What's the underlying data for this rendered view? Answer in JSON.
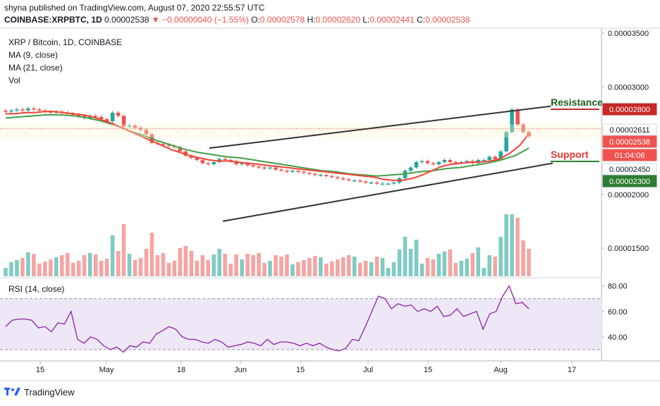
{
  "header": {
    "published": "shyna published on TradingView.com, August 07, 2020 22:55:57 UTC",
    "symbol": "COINBASE:XRPBTC, 1D",
    "price": "0.00002538",
    "change": "−0.00000040 (−1.55%)",
    "o_label": "O:",
    "o_value": "0.00002578",
    "h_label": "H:",
    "h_value": "0.00002620",
    "l_label": "L:",
    "l_value": "0.00002441",
    "c_label": "C:",
    "c_value": "0.00002538"
  },
  "legend": {
    "title": "XRP / Bitcoin, 1D, COINBASE",
    "ma9": "MA (9, close)",
    "ma21": "MA (21, close)",
    "vol": "Vol"
  },
  "rsi_legend": "RSI (14, close)",
  "branding": "TradingView",
  "annotations": {
    "resistance": "Resistance",
    "support": "Support"
  },
  "colors": {
    "up": "#26a69a",
    "down": "#ef5350",
    "ma9": "#f44336",
    "ma21": "#43a047",
    "rsi": "#8e24aa",
    "resistance": "#1b5e20",
    "support": "#e53935",
    "trend": "#333333"
  },
  "price_tags": [
    {
      "value": "0.00002800",
      "bg": "#c62828",
      "fg": "#ffffff"
    },
    {
      "value": "0.00002611",
      "bg": "#ffffff",
      "fg": "#131722"
    },
    {
      "value": "0.00002538",
      "bg": "#ef5350",
      "fg": "#ffffff"
    },
    {
      "value": "01:04:06",
      "bg": "#ef5350",
      "fg": "#ffffff"
    },
    {
      "value": "0.00002450",
      "bg": "#ffffff",
      "fg": "#131722"
    },
    {
      "value": "0.00002300",
      "bg": "#2e7d32",
      "fg": "#ffffff"
    }
  ],
  "chart_data": {
    "type": "candlestick",
    "y_axis_ticks": [
      "0.00003500",
      "0.00003000",
      "0.00002000",
      "0.00001500"
    ],
    "x_axis_ticks": [
      "15",
      "May",
      "18",
      "Jun",
      "15",
      "Jul",
      "15",
      "Aug",
      "17"
    ],
    "rsi_ticks": [
      "80.00",
      "60.00",
      "40.00"
    ],
    "rsi_band": [
      30,
      70
    ],
    "candles_close": [
      2.77e-05,
      2.78e-05,
      2.79e-05,
      2.78e-05,
      2.8e-05,
      2.79e-05,
      2.78e-05,
      2.77e-05,
      2.76e-05,
      2.77e-05,
      2.76e-05,
      2.75e-05,
      2.74e-05,
      2.73e-05,
      2.71e-05,
      2.73e-05,
      2.72e-05,
      2.7e-05,
      2.68e-05,
      2.76e-05,
      2.73e-05,
      2.63e-05,
      2.64e-05,
      2.62e-05,
      2.6e-05,
      2.56e-05,
      2.48e-05,
      2.47e-05,
      2.46e-05,
      2.45e-05,
      2.44e-05,
      2.4e-05,
      2.36e-05,
      2.34e-05,
      2.32e-05,
      2.29e-05,
      2.28e-05,
      2.3e-05,
      2.33e-05,
      2.32e-05,
      2.31e-05,
      2.28e-05,
      2.29e-05,
      2.27e-05,
      2.26e-05,
      2.25e-05,
      2.24e-05,
      2.25e-05,
      2.23e-05,
      2.22e-05,
      2.21e-05,
      2.22e-05,
      2.21e-05,
      2.2e-05,
      2.19e-05,
      2.18e-05,
      2.18e-05,
      2.17e-05,
      2.16e-05,
      2.15e-05,
      2.14e-05,
      2.13e-05,
      2.13e-05,
      2.12e-05,
      2.11e-05,
      2.11e-05,
      2.1e-05,
      2.1e-05,
      2.1e-05,
      2.11e-05,
      2.15e-05,
      2.22e-05,
      2.25e-05,
      2.3e-05,
      2.31e-05,
      2.29e-05,
      2.28e-05,
      2.3e-05,
      2.32e-05,
      2.3e-05,
      2.29e-05,
      2.3e-05,
      2.31e-05,
      2.29e-05,
      2.32e-05,
      2.32e-05,
      2.35e-05,
      2.33e-05,
      2.4e-05,
      2.58e-05,
      2.79e-05,
      2.65e-05,
      2.58e-05,
      2.54e-05
    ],
    "ma9": [
      2.75e-05,
      2.75e-05,
      2.76e-05,
      2.76e-05,
      2.77e-05,
      2.77e-05,
      2.76e-05,
      2.75e-05,
      2.74e-05,
      2.72e-05,
      2.69e-05,
      2.66e-05,
      2.62e-05,
      2.58e-05,
      2.54e-05,
      2.5e-05,
      2.46e-05,
      2.42e-05,
      2.39e-05,
      2.36e-05,
      2.34e-05,
      2.32e-05,
      2.31e-05,
      2.31e-05,
      2.3e-05,
      2.29e-05,
      2.28e-05,
      2.27e-05,
      2.26e-05,
      2.25e-05,
      2.24e-05,
      2.23e-05,
      2.22e-05,
      2.21e-05,
      2.2e-05,
      2.19e-05,
      2.18e-05,
      2.17e-05,
      2.16e-05,
      2.14e-05,
      2.13e-05,
      2.13e-05,
      2.15e-05,
      2.18e-05,
      2.22e-05,
      2.26e-05,
      2.28e-05,
      2.29e-05,
      2.3e-05,
      2.3e-05,
      2.31e-05,
      2.33e-05,
      2.38e-05,
      2.45e-05,
      2.56e-05
    ],
    "ma21": [
      2.71e-05,
      2.72e-05,
      2.73e-05,
      2.74e-05,
      2.74e-05,
      2.73e-05,
      2.71e-05,
      2.68e-05,
      2.64e-05,
      2.59e-05,
      2.55e-05,
      2.5e-05,
      2.46e-05,
      2.42e-05,
      2.39e-05,
      2.37e-05,
      2.35e-05,
      2.34e-05,
      2.32e-05,
      2.3e-05,
      2.28e-05,
      2.26e-05,
      2.24e-05,
      2.22e-05,
      2.21e-05,
      2.19e-05,
      2.18e-05,
      2.17e-05,
      2.18e-05,
      2.19e-05,
      2.21e-05,
      2.22e-05,
      2.24e-05,
      2.25e-05,
      2.27e-05,
      2.29e-05,
      2.32e-05,
      2.36e-05,
      2.43e-05
    ],
    "rsi": [
      48,
      53,
      54,
      54,
      53,
      47,
      48,
      44,
      51,
      50,
      60,
      38,
      35,
      40,
      38,
      33,
      30,
      32,
      28,
      33,
      32,
      36,
      35,
      42,
      45,
      48,
      46,
      40,
      38,
      38,
      36,
      35,
      38,
      36,
      32,
      33,
      34,
      36,
      35,
      33,
      38,
      34,
      36,
      36,
      35,
      33,
      35,
      33,
      35,
      32,
      30,
      29,
      31,
      38,
      37,
      48,
      60,
      72,
      70,
      62,
      66,
      64,
      65,
      60,
      62,
      60,
      64,
      56,
      57,
      62,
      56,
      58,
      60,
      46,
      58,
      60,
      72,
      80,
      66,
      67,
      62
    ]
  }
}
